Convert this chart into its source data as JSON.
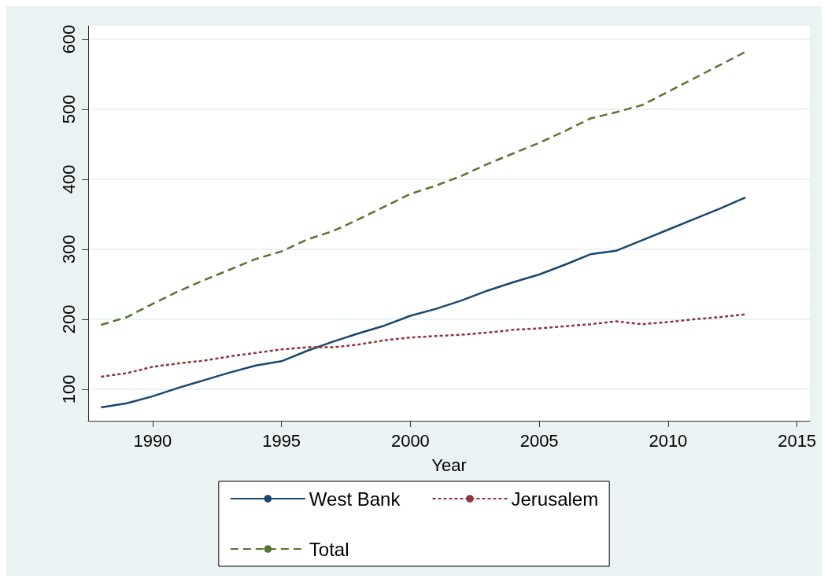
{
  "chart_data": {
    "type": "line",
    "xlabel": "Year",
    "x": [
      1988,
      1989,
      1990,
      1991,
      1992,
      1993,
      1994,
      1995,
      1996,
      1997,
      1998,
      1999,
      2000,
      2001,
      2002,
      2003,
      2004,
      2005,
      2006,
      2007,
      2008,
      2009,
      2010,
      2011,
      2012,
      2013
    ],
    "series": [
      {
        "name": "West Bank",
        "color": "#1a476f",
        "line_style": "solid",
        "values": [
          74,
          80,
          90,
          102,
          113,
          124,
          134,
          140,
          155,
          168,
          180,
          191,
          205,
          215,
          227,
          241,
          253,
          264,
          278,
          293,
          298,
          313,
          328,
          343,
          358,
          374
        ]
      },
      {
        "name": "Jerusalem",
        "color": "#90353b",
        "line_style": "dotted",
        "values": [
          118,
          123,
          132,
          137,
          141,
          147,
          152,
          157,
          160,
          160,
          164,
          170,
          174,
          176,
          178,
          181,
          185,
          187,
          190,
          193,
          197,
          193,
          196,
          200,
          203,
          207
        ]
      },
      {
        "name": "Total",
        "color": "#55752f",
        "line_style": "dashed",
        "values": [
          192,
          203,
          222,
          240,
          256,
          271,
          286,
          297,
          314,
          326,
          343,
          361,
          379,
          391,
          405,
          422,
          437,
          452,
          469,
          487,
          496,
          506,
          525,
          544,
          563,
          582
        ]
      }
    ],
    "xlim": [
      1987.5,
      2015.5
    ],
    "xticks": [
      1990,
      1995,
      2000,
      2005,
      2010,
      2015
    ],
    "ylim": [
      55,
      619
    ],
    "yticks": [
      100,
      200,
      300,
      400,
      500,
      600
    ],
    "grid": "y",
    "legend": "bottom",
    "marker": "none"
  }
}
